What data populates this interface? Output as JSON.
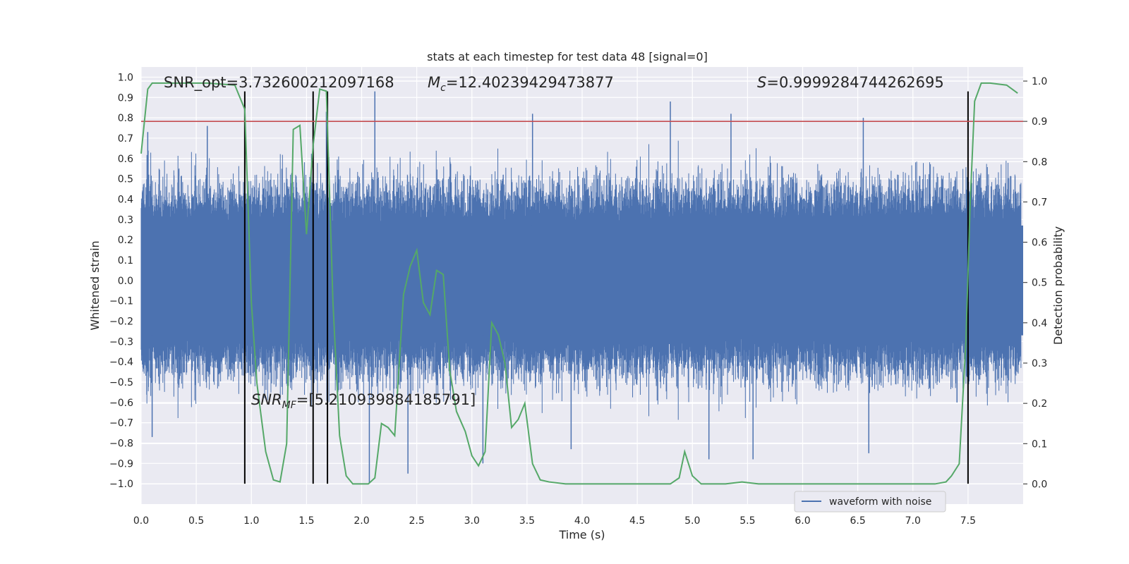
{
  "chart_data": {
    "type": "line",
    "title": "stats at each timestep for test data 48 [signal=0]",
    "xlabel": "Time (s)",
    "ylabel": "Whitened strain",
    "y2label": "Detection probability",
    "xlim": [
      0,
      8.0
    ],
    "ylim": [
      -1.1,
      1.05
    ],
    "y2lim": [
      -0.05,
      1.035
    ],
    "xticks": [
      "0.0",
      "0.5",
      "1.0",
      "1.5",
      "2.0",
      "2.5",
      "3.0",
      "3.5",
      "4.0",
      "4.5",
      "5.0",
      "5.5",
      "6.0",
      "6.5",
      "7.0",
      "7.5"
    ],
    "yticks": [
      "1.0",
      "0.9",
      "0.8",
      "0.7",
      "0.6",
      "0.5",
      "0.4",
      "0.3",
      "0.2",
      "0.1",
      "0.0",
      "-0.1",
      "-0.2",
      "-0.3",
      "-0.4",
      "-0.5",
      "-0.6",
      "-0.7",
      "-0.8",
      "-0.9",
      "-1.0"
    ],
    "y2ticks": [
      "1.0",
      "0.9",
      "0.8",
      "0.7",
      "0.6",
      "0.5",
      "0.4",
      "0.3",
      "0.2",
      "0.1",
      "0.0"
    ],
    "grid": true,
    "legend": {
      "placement": "lower-right",
      "entries": [
        "waveform with noise"
      ]
    },
    "colors": {
      "waveform": "#4c72b0",
      "probability": "#55a868",
      "threshold": "#c44e52",
      "markers": "#000000",
      "background": "#eaeaf2"
    },
    "threshold_probability": 0.9,
    "vertical_markers": [
      0.94,
      1.56,
      1.69,
      7.5
    ],
    "annotations": {
      "snr_opt": "SNR_opt=3.732600212097168",
      "mc_symbol": "M",
      "mc_sub": "c",
      "mc_value": "=12.40239429473877",
      "s_symbol": "S",
      "s_value": "=0.9999284744262695",
      "snr_mf_symbol": "SNR",
      "snr_mf_sub": "MF",
      "snr_mf_value": "=[5.210939884185791]"
    },
    "series": [
      {
        "name": "waveform with noise",
        "role": "strain",
        "peaks": [
          {
            "x": 0.06,
            "y": 0.73
          },
          {
            "x": 0.1,
            "y": -0.77
          },
          {
            "x": 0.6,
            "y": 0.76
          },
          {
            "x": 1.68,
            "y": 0.83
          },
          {
            "x": 2.12,
            "y": 0.93
          },
          {
            "x": 2.42,
            "y": -0.95
          },
          {
            "x": 2.07,
            "y": -1.0
          },
          {
            "x": 3.55,
            "y": 0.82
          },
          {
            "x": 3.1,
            "y": -0.9
          },
          {
            "x": 4.8,
            "y": 0.88
          },
          {
            "x": 5.35,
            "y": 0.82
          },
          {
            "x": 6.55,
            "y": 0.8
          },
          {
            "x": 5.15,
            "y": -0.88
          },
          {
            "x": 5.55,
            "y": -0.88
          },
          {
            "x": 6.6,
            "y": -0.85
          },
          {
            "x": 3.9,
            "y": -0.83
          },
          {
            "x": 7.4,
            "y": -0.6
          }
        ]
      },
      {
        "name": "",
        "role": "detection-probability",
        "x": [
          0.0,
          0.06,
          0.1,
          0.2,
          0.4,
          0.6,
          0.85,
          0.94,
          1.0,
          1.05,
          1.13,
          1.2,
          1.26,
          1.32,
          1.38,
          1.44,
          1.5,
          1.56,
          1.62,
          1.68,
          1.74,
          1.8,
          1.86,
          1.92,
          2.0,
          2.06,
          2.12,
          2.18,
          2.24,
          2.3,
          2.38,
          2.44,
          2.5,
          2.56,
          2.62,
          2.68,
          2.74,
          2.8,
          2.86,
          2.94,
          3.0,
          3.06,
          3.12,
          3.18,
          3.24,
          3.3,
          3.36,
          3.42,
          3.48,
          3.55,
          3.62,
          3.7,
          3.85,
          4.0,
          4.5,
          4.8,
          4.88,
          4.93,
          5.0,
          5.08,
          5.15,
          5.3,
          5.45,
          5.6,
          6.0,
          6.3,
          6.6,
          6.8,
          7.0,
          7.2,
          7.3,
          7.35,
          7.42,
          7.48,
          7.52,
          7.56,
          7.62,
          7.7,
          7.85,
          7.95
        ],
        "y": [
          0.82,
          0.98,
          0.995,
          0.995,
          0.995,
          0.995,
          0.99,
          0.93,
          0.45,
          0.25,
          0.08,
          0.01,
          0.005,
          0.1,
          0.88,
          0.89,
          0.62,
          0.84,
          0.98,
          0.975,
          0.45,
          0.12,
          0.02,
          0.0,
          -0.0,
          0.0,
          0.015,
          0.15,
          0.14,
          0.12,
          0.47,
          0.54,
          0.58,
          0.45,
          0.42,
          0.53,
          0.52,
          0.28,
          0.18,
          0.13,
          0.07,
          0.045,
          0.08,
          0.4,
          0.37,
          0.3,
          0.14,
          0.16,
          0.2,
          0.05,
          0.01,
          0.005,
          0.0,
          0.0,
          0.0,
          0.0,
          0.015,
          0.08,
          0.02,
          0.0,
          0.0,
          0.0,
          0.005,
          0.0,
          0.0,
          0.0,
          0.0,
          0.0,
          0.0,
          0.0,
          0.005,
          0.02,
          0.05,
          0.35,
          0.7,
          0.95,
          0.995,
          0.995,
          0.99,
          0.97
        ]
      }
    ]
  }
}
